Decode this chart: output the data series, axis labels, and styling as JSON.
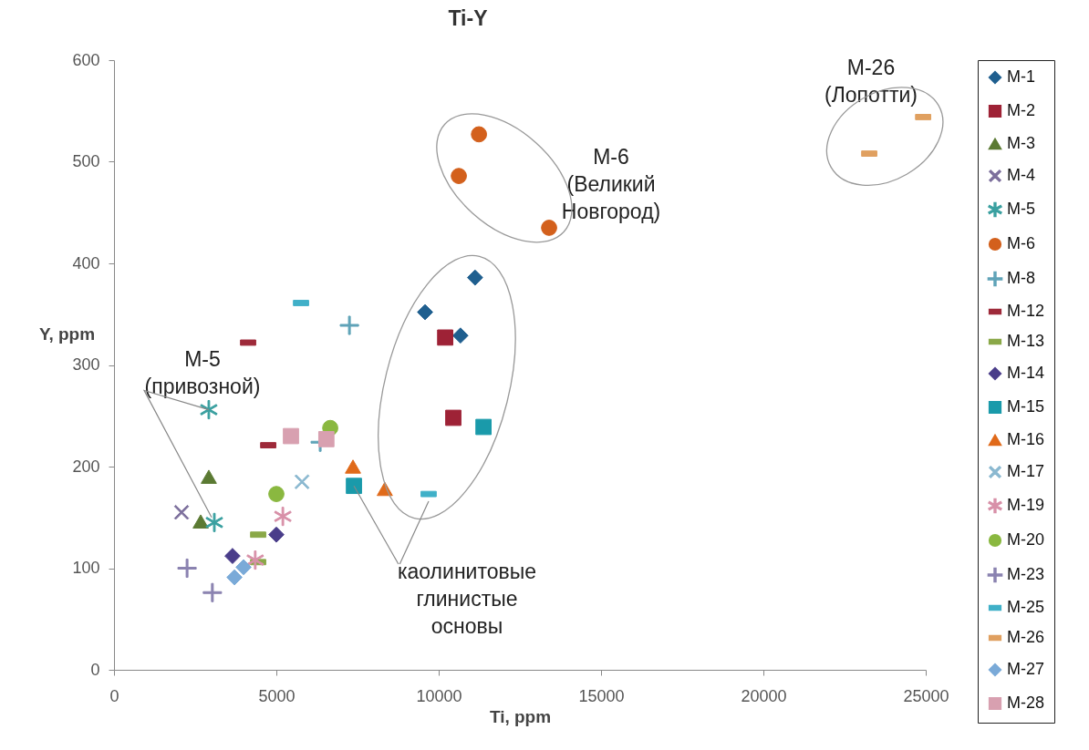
{
  "chart_data": {
    "type": "scatter",
    "title": "Ti-Y",
    "xlabel": "Ti, ppm",
    "ylabel": "Y, ppm",
    "xlim": [
      0,
      25000
    ],
    "xticks": [
      0,
      5000,
      10000,
      15000,
      20000,
      25000
    ],
    "ylim": [
      0,
      600
    ],
    "yticks": [
      0,
      100,
      200,
      300,
      400,
      500,
      600
    ],
    "grid": false,
    "legend": "right",
    "annotations": [
      {
        "text": "M-5\n(привозной)",
        "x": 2920,
        "y": 256
      },
      "M-6\n(Великий\nНовгород)",
      {
        "text": "каолинитовые\nглинистые\nосновы",
        "x": 7390,
        "y": 181
      },
      "M-26\n(Лопотти)"
    ],
    "series": [
      {
        "name": "M-1",
        "color": "#1f5f8f",
        "x": [
          9580,
          11120,
          10670
        ],
        "values": [
          352,
          386,
          329
        ]
      },
      {
        "name": "M-2",
        "color": "#9e2236",
        "x": [
          10200,
          10450
        ],
        "values": [
          327,
          248
        ]
      },
      {
        "name": "M-3",
        "color": "#5b7a33",
        "x": [
          2920,
          2670
        ],
        "values": [
          190,
          146
        ]
      },
      {
        "name": "M-4",
        "color": "#7c6f9c",
        "x": [
          2080
        ],
        "values": [
          155
        ]
      },
      {
        "name": "M-5",
        "color": "#3aa0a0",
        "x": [
          2920,
          3090
        ],
        "values": [
          256,
          145
        ]
      },
      {
        "name": "M-6",
        "color": "#d3601c",
        "x": [
          11240,
          10620,
          13400
        ],
        "values": [
          527,
          486,
          435
        ]
      },
      {
        "name": "M-8",
        "color": "#5fa3b8",
        "x": [
          7250,
          6350
        ],
        "values": [
          339,
          224
        ]
      },
      {
        "name": "M-12",
        "color": "#9e2a3a",
        "x": [
          4130,
          4750
        ],
        "values": [
          322,
          221
        ]
      },
      {
        "name": "M-13",
        "color": "#8aa848",
        "x": [
          4440,
          4440
        ],
        "values": [
          133,
          106
        ]
      },
      {
        "name": "M-14",
        "color": "#4a3d8a",
        "x": [
          3650,
          5000
        ],
        "values": [
          112,
          133
        ]
      },
      {
        "name": "M-15",
        "color": "#1a9aaa",
        "x": [
          11380,
          7390
        ],
        "values": [
          239,
          181
        ]
      },
      {
        "name": "M-16",
        "color": "#e06a1a",
        "x": [
          7360,
          8340
        ],
        "values": [
          200,
          178
        ]
      },
      {
        "name": "M-17",
        "color": "#8ab8d0",
        "x": [
          5790
        ],
        "values": [
          185
        ]
      },
      {
        "name": "M-19",
        "color": "#d890a8",
        "x": [
          5200,
          4350
        ],
        "values": [
          151,
          108
        ]
      },
      {
        "name": "M-20",
        "color": "#8ab840",
        "x": [
          5000,
          6660
        ],
        "values": [
          173,
          238
        ]
      },
      {
        "name": "M-23",
        "color": "#8a82b0",
        "x": [
          2250,
          3030
        ],
        "values": [
          100,
          76
        ]
      },
      {
        "name": "M-25",
        "color": "#40b0c8",
        "x": [
          5760,
          9690
        ],
        "values": [
          361,
          173
        ]
      },
      {
        "name": "M-26",
        "color": "#e0a060",
        "x": [
          24920,
          23260
        ],
        "values": [
          544,
          508
        ]
      },
      {
        "name": "M-27",
        "color": "#7aaad8",
        "x": [
          3710,
          3990
        ],
        "values": [
          91,
          101
        ]
      },
      {
        "name": "M-28",
        "color": "#d8a0b0",
        "x": [
          5450,
          6540
        ],
        "values": [
          230,
          227
        ]
      }
    ]
  }
}
